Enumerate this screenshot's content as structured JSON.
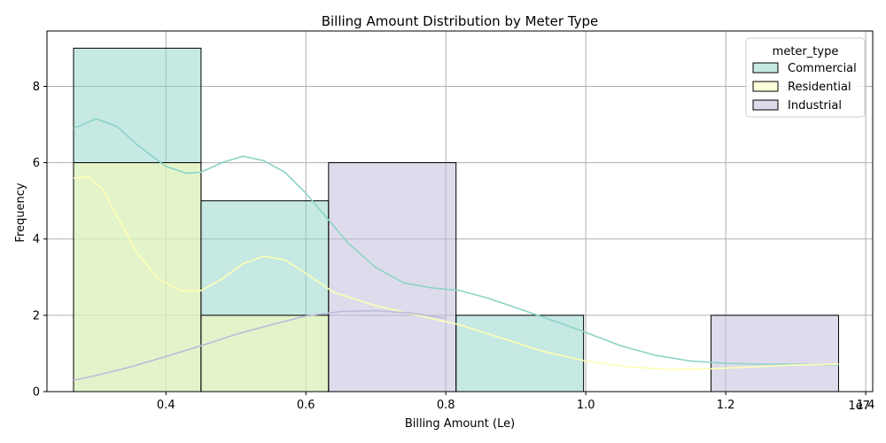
{
  "chart_data": {
    "type": "histogram",
    "title": "Billing Amount Distribution by Meter Type",
    "xlabel": "Billing Amount (Le)",
    "ylabel": "Frequency",
    "x_offset_label": "1e7",
    "xlim": [
      0.23,
      1.41
    ],
    "ylim": [
      0,
      9.45
    ],
    "x_ticks": [
      0.4,
      0.6,
      0.8,
      1.0,
      1.2,
      1.4
    ],
    "x_tick_labels": [
      "0.4",
      "0.6",
      "0.8",
      "1.0",
      "1.2",
      "1.4"
    ],
    "y_ticks": [
      0,
      2,
      4,
      6,
      8
    ],
    "y_tick_labels": [
      "0",
      "2",
      "4",
      "6",
      "8"
    ],
    "grid": true,
    "multiple": "layer",
    "bin_edges": [
      0.268,
      0.4502,
      0.6324,
      0.8146,
      0.9968,
      1.179,
      1.3612
    ],
    "legend": {
      "title": "meter_type",
      "placement": "top-right"
    },
    "series": [
      {
        "name": "Commercial",
        "color": "#8dd3c7",
        "counts": [
          9,
          5,
          0,
          2,
          0,
          0
        ],
        "kde_x": [
          0.268,
          0.3,
          0.33,
          0.36,
          0.4,
          0.43,
          0.45,
          0.48,
          0.51,
          0.54,
          0.57,
          0.6,
          0.63,
          0.66,
          0.7,
          0.74,
          0.78,
          0.82,
          0.86,
          0.9,
          0.95,
          1.0,
          1.05,
          1.1,
          1.15,
          1.2,
          1.25,
          1.3,
          1.3612
        ],
        "kde_y": [
          6.9,
          7.15,
          6.95,
          6.45,
          5.9,
          5.72,
          5.75,
          6.0,
          6.17,
          6.05,
          5.75,
          5.2,
          4.55,
          3.9,
          3.25,
          2.85,
          2.72,
          2.65,
          2.45,
          2.2,
          1.88,
          1.55,
          1.2,
          0.95,
          0.8,
          0.74,
          0.72,
          0.72,
          0.7
        ]
      },
      {
        "name": "Residential",
        "color": "#ffffb3",
        "counts": [
          6,
          2,
          0,
          0,
          0,
          0
        ],
        "kde_x": [
          0.268,
          0.29,
          0.31,
          0.33,
          0.36,
          0.39,
          0.42,
          0.45,
          0.48,
          0.51,
          0.54,
          0.57,
          0.6,
          0.64,
          0.7,
          0.76,
          0.82,
          0.88,
          0.94,
          1.0,
          1.06,
          1.12,
          1.18,
          1.24,
          1.3,
          1.3612
        ],
        "kde_y": [
          5.6,
          5.62,
          5.3,
          4.6,
          3.6,
          2.95,
          2.65,
          2.65,
          2.95,
          3.35,
          3.55,
          3.45,
          3.1,
          2.6,
          2.25,
          2.0,
          1.75,
          1.4,
          1.05,
          0.8,
          0.65,
          0.58,
          0.6,
          0.65,
          0.7,
          0.72
        ]
      },
      {
        "name": "Industrial",
        "color": "#bebada",
        "counts": [
          0,
          0,
          6,
          0,
          0,
          2
        ],
        "kde_x": [
          0.268,
          0.3,
          0.35,
          0.4,
          0.45,
          0.5,
          0.55,
          0.6,
          0.65,
          0.7,
          0.75,
          0.8
        ],
        "kde_y": [
          0.3,
          0.42,
          0.65,
          0.92,
          1.2,
          1.5,
          1.75,
          1.98,
          2.1,
          2.12,
          2.06,
          1.92
        ]
      }
    ]
  }
}
